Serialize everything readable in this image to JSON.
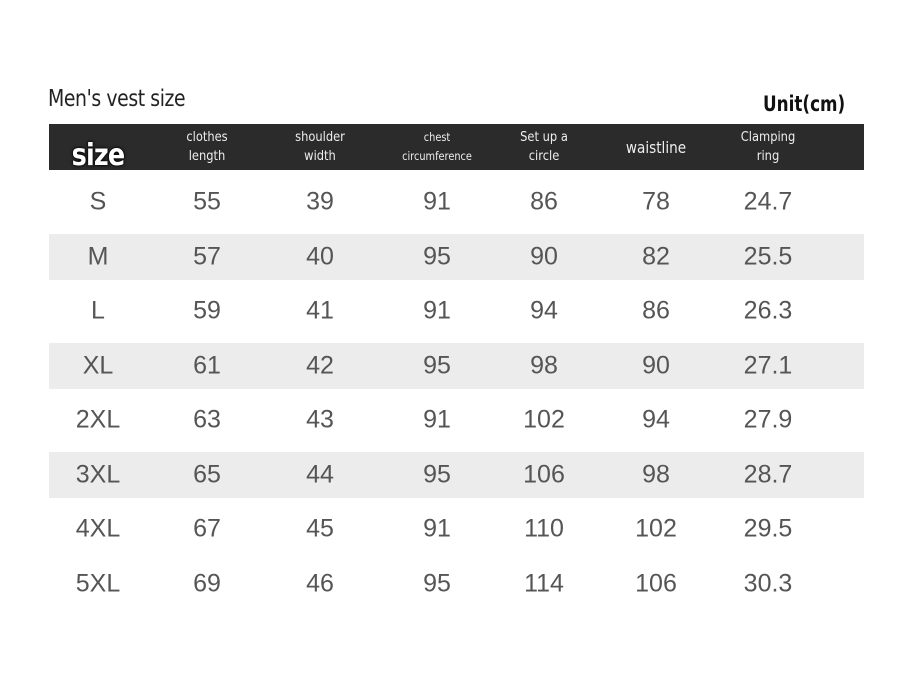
{
  "header": {
    "title": "Men's vest size",
    "unit": "Unit(cm)"
  },
  "table": {
    "columns": [
      "size",
      "clothes length",
      "shoulder width",
      "chest circumference",
      "Set up a circle",
      "waistline",
      "Clamping ring"
    ],
    "rows": [
      [
        "S",
        55,
        39,
        91,
        86,
        78,
        24.7
      ],
      [
        "M",
        57,
        40,
        95,
        90,
        82,
        25.5
      ],
      [
        "L",
        59,
        41,
        91,
        94,
        86,
        26.3
      ],
      [
        "XL",
        61,
        42,
        95,
        98,
        90,
        27.1
      ],
      [
        "2XL",
        63,
        43,
        91,
        102,
        94,
        27.9
      ],
      [
        "3XL",
        65,
        44,
        95,
        106,
        98,
        28.7
      ],
      [
        "4XL",
        67,
        45,
        91,
        110,
        102,
        29.5
      ],
      [
        "5XL",
        69,
        46,
        95,
        114,
        106,
        30.3
      ]
    ]
  }
}
